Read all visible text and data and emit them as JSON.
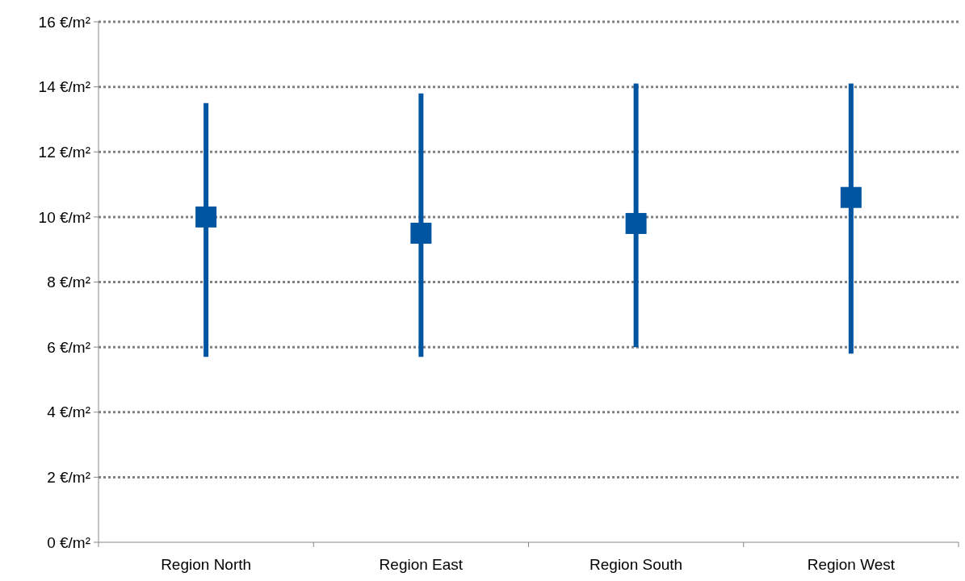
{
  "chart_data": {
    "type": "scatter",
    "categories": [
      "Region North",
      "Region East",
      "Region South",
      "Region West"
    ],
    "series": [
      {
        "color": "#0055a0",
        "values": [
          10.0,
          9.5,
          9.8,
          10.6
        ],
        "errors": [
          [
            5.7,
            13.5
          ],
          [
            5.7,
            13.8
          ],
          [
            6.0,
            14.1
          ],
          [
            5.8,
            14.1
          ]
        ]
      }
    ],
    "ylim": [
      0,
      16
    ],
    "yticks": [
      {
        "value": 0,
        "label": "0 €/m²"
      },
      {
        "value": 2,
        "label": "2 €/m²"
      },
      {
        "value": 4,
        "label": "4 €/m²"
      },
      {
        "value": 6,
        "label": "6 €/m²"
      },
      {
        "value": 8,
        "label": "8 €/m²"
      },
      {
        "value": 10,
        "label": "10 €/m²"
      },
      {
        "value": 12,
        "label": "12 €/m²"
      },
      {
        "value": 14,
        "label": "14 €/m²"
      },
      {
        "value": 16,
        "label": "16 €/m²"
      }
    ],
    "grid": "y",
    "marker": "square"
  }
}
